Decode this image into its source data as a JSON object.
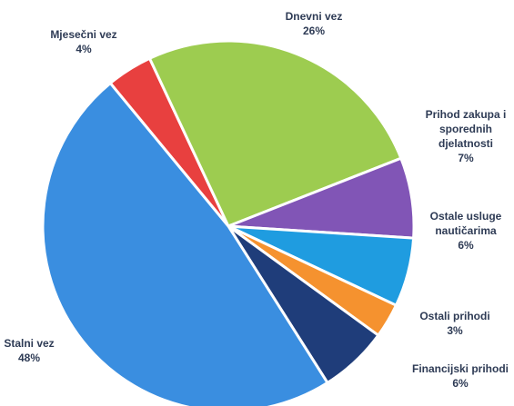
{
  "chart_data": {
    "type": "pie",
    "categories": [
      "Mjesečni vez",
      "Dnevni vez",
      "Prihod zakupa i sporednih djelatnosti",
      "Ostale usluge nautičarima",
      "Ostali prihodi",
      "Financijski prihodi",
      "Stalni vez"
    ],
    "values": [
      4,
      26,
      7,
      6,
      3,
      6,
      48
    ],
    "value_labels": [
      "4%",
      "26%",
      "7%",
      "6%",
      "3%",
      "6%",
      "48%"
    ],
    "colors": [
      "#e8403f",
      "#9dcc50",
      "#8155b6",
      "#1f9ce0",
      "#f5922f",
      "#1f3d7a",
      "#3a8ee0"
    ]
  }
}
